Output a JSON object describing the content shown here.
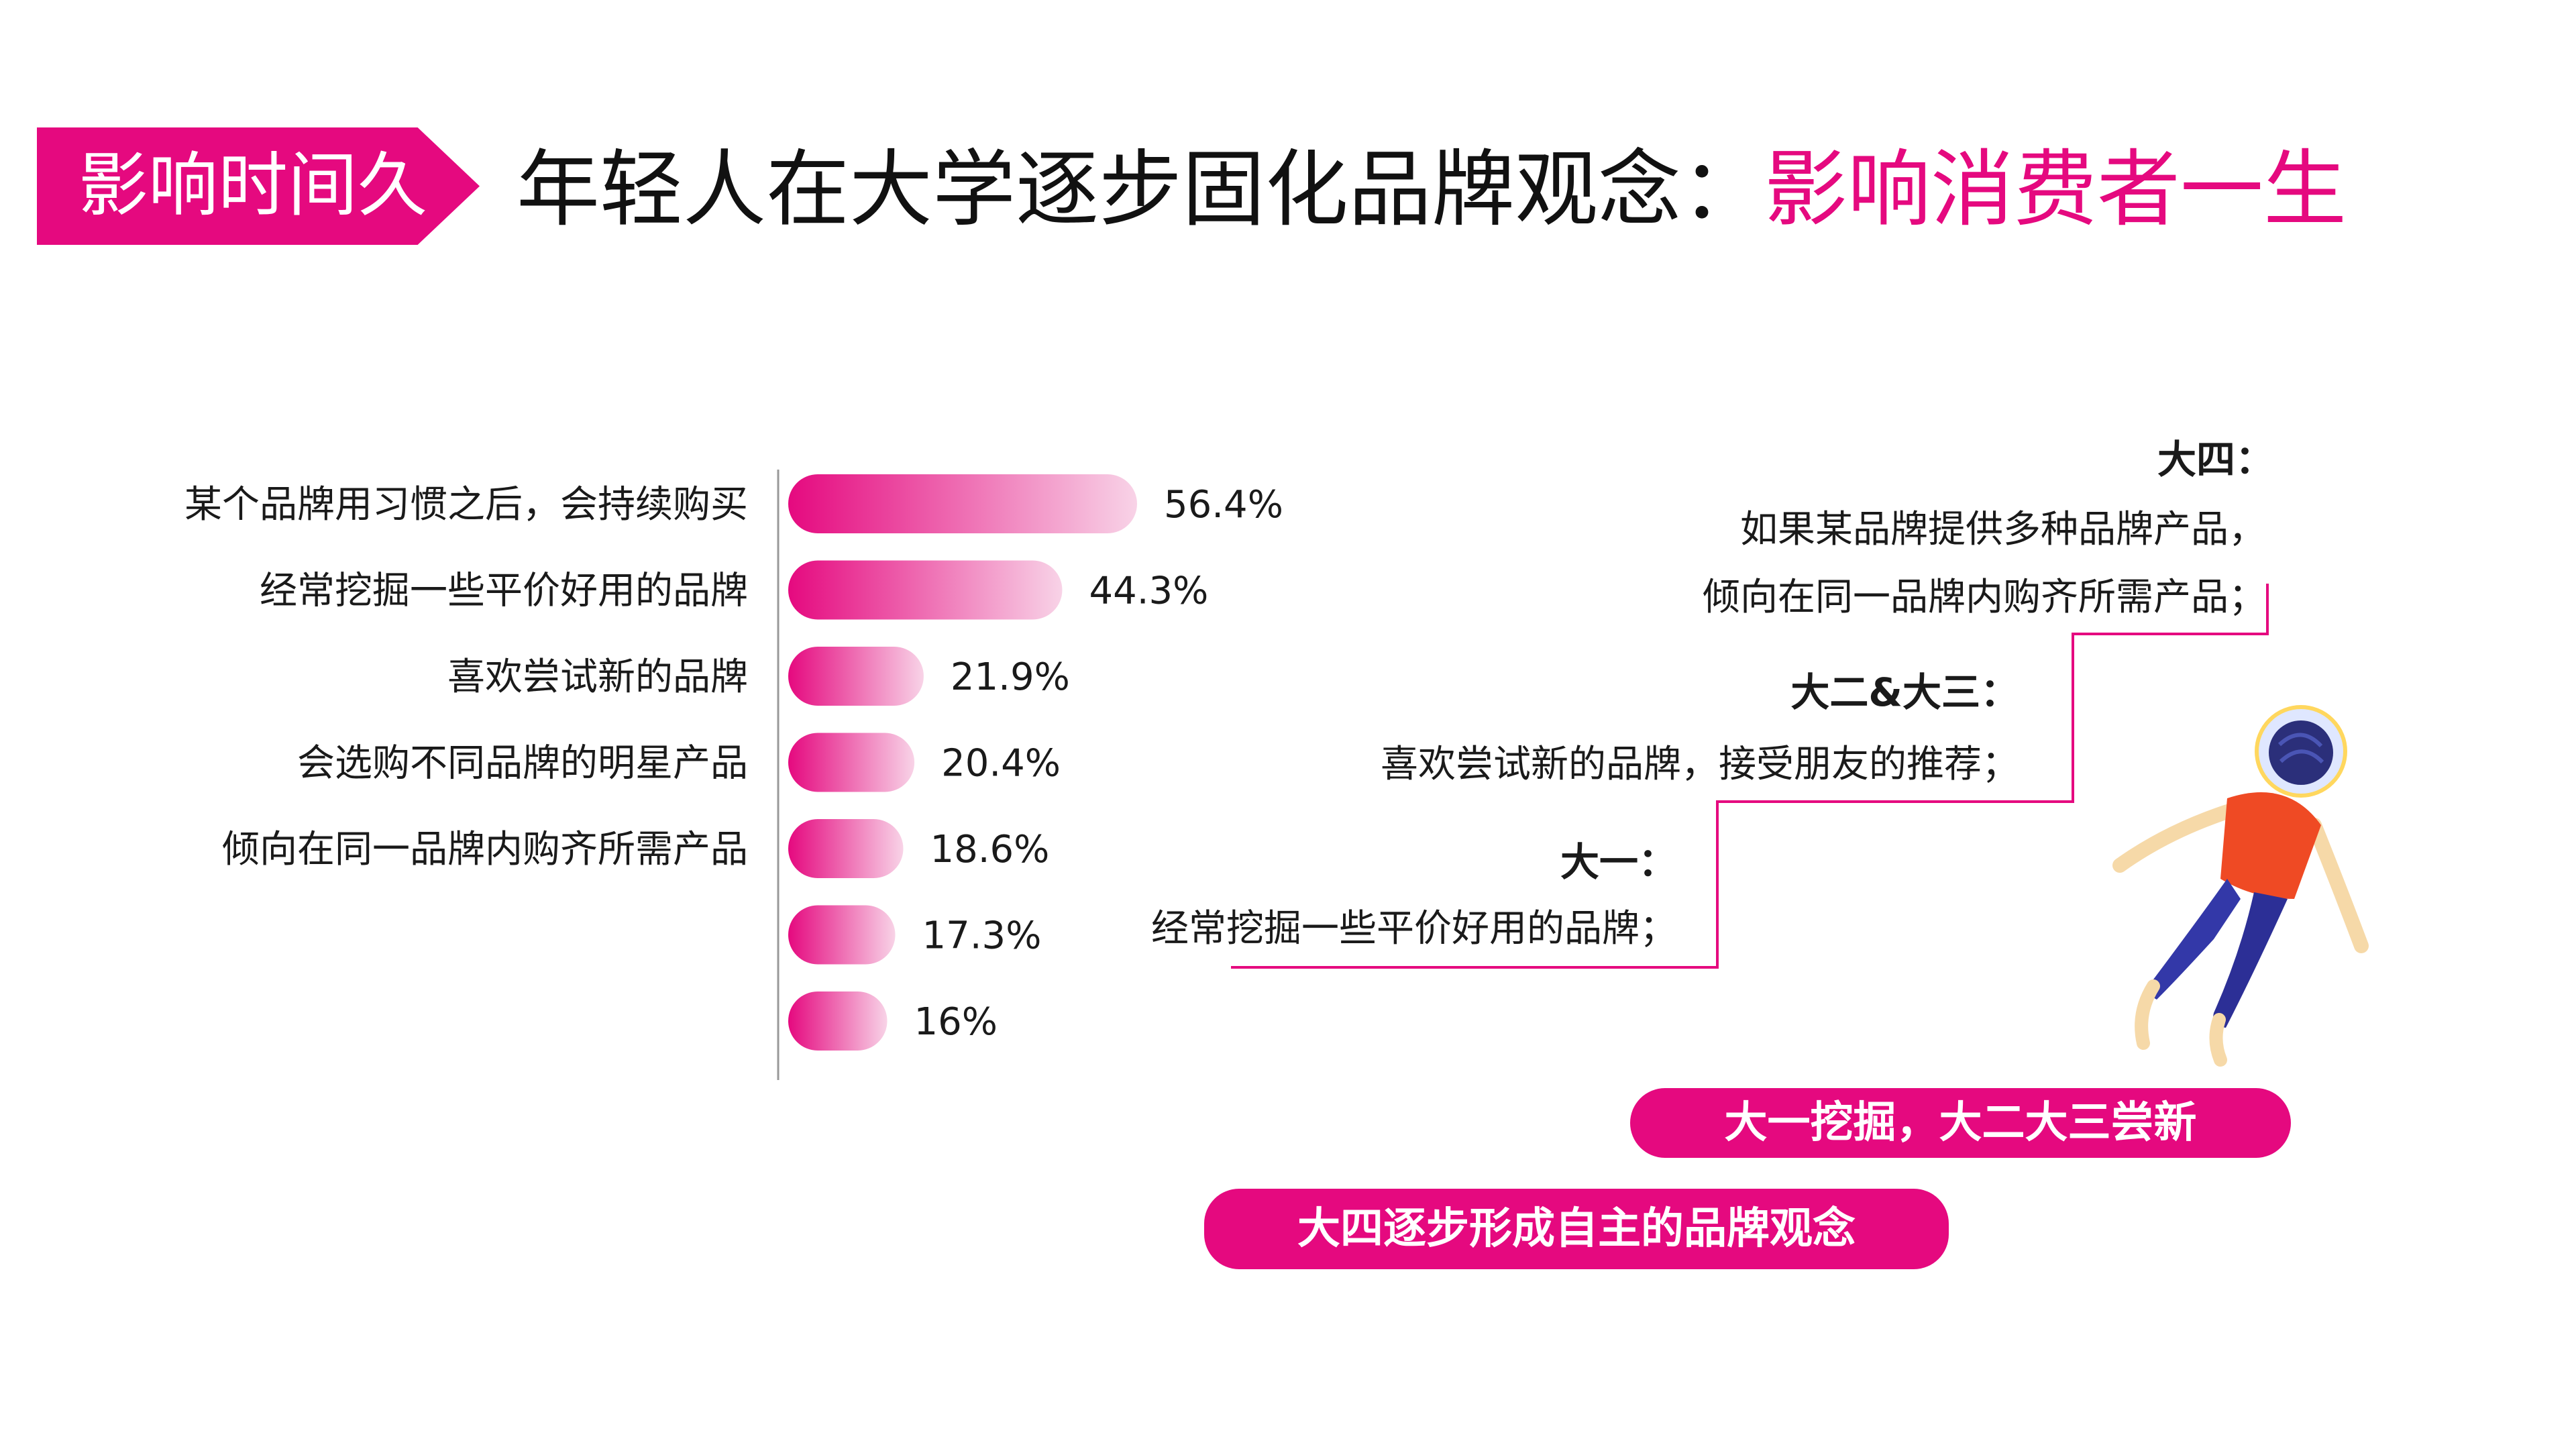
{
  "header": {
    "tag": "影响时间久",
    "title_main": "年轻人在大学逐步固化品牌观念：",
    "title_highlight": "影响消费者一生"
  },
  "colors": {
    "accent": "#e5097f",
    "bar_gradient_start": "#e5097f",
    "bar_gradient_end": "#f8d3e7",
    "axis": "#999999"
  },
  "chart_data": {
    "type": "bar",
    "orientation": "horizontal",
    "categories": [
      "某个品牌用习惯之后，会持续购买",
      "经常挖掘一些平价好用的品牌",
      "喜欢尝试新的品牌",
      "会选购不同品牌的明星产品",
      "倾向在同一品牌内购齐所需产品",
      "",
      ""
    ],
    "values": [
      56.4,
      44.3,
      21.9,
      20.4,
      18.6,
      17.3,
      16
    ],
    "value_labels": [
      "56.4%",
      "44.3%",
      "21.9%",
      "20.4%",
      "18.6%",
      "17.3%",
      "16%"
    ],
    "xlim": [
      0,
      60
    ],
    "grid": false,
    "legend": "none"
  },
  "stairs": {
    "senior_title": "大四：",
    "senior_line1": "如果某品牌提供多种品牌产品，",
    "senior_line2": "倾向在同一品牌内购齐所需产品；",
    "mid_title": "大二&大三：",
    "mid_line1": "喜欢尝试新的品牌，接受朋友的推荐；",
    "fresh_title": "大一：",
    "fresh_line1": "经常挖掘一些平价好用的品牌；"
  },
  "pills": {
    "pill1": "大一挖掘，大二大三尝新",
    "pill2": "大四逐步形成自主的品牌观念"
  }
}
